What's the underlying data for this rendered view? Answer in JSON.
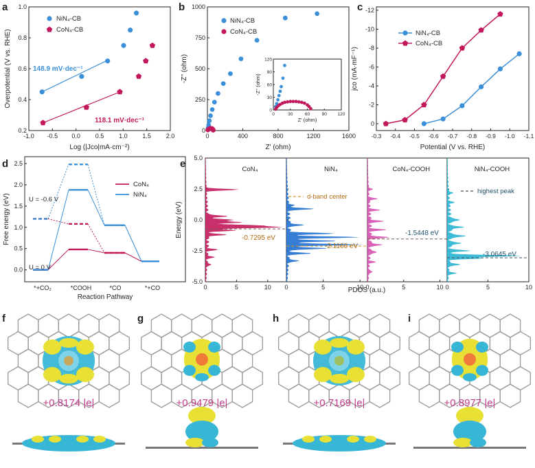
{
  "panel_letters": [
    "a",
    "b",
    "c",
    "d",
    "e",
    "f",
    "g",
    "h",
    "i"
  ],
  "colors": {
    "ni": "#3a8fd8",
    "co": "#c2185b",
    "ni_line": "#3a8fd8",
    "co_line": "#c2185b",
    "orange": "#e0961c",
    "cyan": "#27b3d1",
    "pink": "#d64fb0",
    "blue2": "#1f6fd0"
  },
  "chart_data": [
    {
      "id": "a",
      "type": "scatter",
      "xlabel": "Log (|Jco|mA·cm⁻²)",
      "ylabel": "Overpotential (V vs. RHE)",
      "xlim": [
        -1.0,
        2.0
      ],
      "ylim": [
        0.2,
        1.0
      ],
      "xticks": [
        "-1.0",
        "-0.5",
        "0.0",
        "0.5",
        "1.0",
        "1.5",
        "2.0"
      ],
      "yticks": [
        "0.2",
        "0.4",
        "0.6",
        "0.8",
        "1.0"
      ],
      "legend": [
        "NiN₄-CB",
        "CoN₄-CB"
      ],
      "series": [
        {
          "name": "NiN₄-CB",
          "color": "#3a8fd8",
          "marker": "circle",
          "x": [
            -0.72,
            0.12,
            0.67,
            1.01,
            1.15,
            1.28
          ],
          "y": [
            0.45,
            0.55,
            0.65,
            0.75,
            0.85,
            0.96
          ],
          "fit": {
            "x": [
              -0.72,
              0.67
            ],
            "y": [
              0.45,
              0.655
            ]
          }
        },
        {
          "name": "CoN₄-CB",
          "color": "#c2185b",
          "marker": "pentagon",
          "x": [
            -0.7,
            0.22,
            0.93,
            1.33,
            1.48,
            1.62
          ],
          "y": [
            0.25,
            0.35,
            0.45,
            0.55,
            0.65,
            0.75
          ],
          "fit": {
            "x": [
              -0.7,
              0.93
            ],
            "y": [
              0.25,
              0.45
            ]
          }
        }
      ],
      "annotations": [
        "148.9 mV·dec⁻¹",
        "118.1 mV·dec⁻¹"
      ]
    },
    {
      "id": "b",
      "type": "scatter",
      "xlabel": "Z' (ohm)",
      "ylabel": "-Z'' (ohm)",
      "xlim": [
        0,
        1600
      ],
      "ylim": [
        0,
        1000
      ],
      "xticks": [
        "0",
        "400",
        "800",
        "1200",
        "1600"
      ],
      "yticks": [
        "0",
        "250",
        "500",
        "750",
        "1000"
      ],
      "legend": [
        "NiN₄-CB",
        "CoN₄-CB"
      ],
      "series": [
        {
          "name": "NiN₄-CB",
          "color": "#3a8fd8",
          "x": [
            8,
            14,
            22,
            35,
            55,
            80,
            120,
            180,
            260,
            380,
            560,
            880,
            1240
          ],
          "y": [
            20,
            45,
            80,
            120,
            170,
            230,
            300,
            380,
            460,
            580,
            730,
            910,
            945
          ]
        },
        {
          "name": "CoN₄-CB",
          "color": "#c2185b",
          "x": [
            5,
            10,
            18,
            28,
            38,
            48,
            55,
            60,
            64,
            66
          ],
          "y": [
            5,
            10,
            14,
            17,
            18,
            17,
            15,
            11,
            7,
            3
          ]
        }
      ],
      "inset": {
        "xlabel": "Z' (ohm)",
        "ylabel": "-Z'' (ohm)",
        "xlim": [
          0,
          120
        ],
        "ylim": [
          0,
          120
        ],
        "xticks": [
          "0",
          "30",
          "60",
          "90",
          "120"
        ],
        "yticks": [
          "0",
          "30",
          "60",
          "90",
          "120"
        ],
        "ni": {
          "x": [
            4,
            6,
            8,
            10,
            12,
            14,
            17,
            20
          ],
          "y": [
            8,
            15,
            24,
            34,
            44,
            55,
            75,
            105
          ]
        },
        "co": {
          "x": [
            4,
            6,
            9,
            12,
            16,
            20,
            25,
            30,
            35,
            40,
            45,
            50,
            55,
            60,
            63,
            66
          ],
          "y": [
            2,
            6,
            10,
            13,
            16,
            18,
            19,
            20,
            20,
            20,
            19,
            18,
            16,
            12,
            8,
            3
          ]
        }
      }
    },
    {
      "id": "c",
      "type": "line",
      "xlabel": "Potential (V vs. RHE)",
      "ylabel": "jco (mA·mF⁻¹)",
      "xlim": [
        -0.3,
        -1.1
      ],
      "ylim": [
        0,
        -12
      ],
      "xticks": [
        "-0.3",
        "-0.4",
        "-0.5",
        "-0.6",
        "-0.7",
        "-0.8",
        "-0.9",
        "-1.0",
        "-1.1"
      ],
      "yticks": [
        "0",
        "-2",
        "-4",
        "-6",
        "-8",
        "-10",
        "-12"
      ],
      "legend": [
        "NiN₄-CB",
        "CoN₄-CB"
      ],
      "series": [
        {
          "name": "NiN₄-CB",
          "color": "#3a8fd8",
          "marker": "circle",
          "x": [
            -0.55,
            -0.65,
            -0.75,
            -0.85,
            -0.95,
            -1.05
          ],
          "y": [
            0,
            -0.5,
            -1.9,
            -3.9,
            -5.8,
            -7.4
          ]
        },
        {
          "name": "CoN₄-CB",
          "color": "#c2185b",
          "marker": "pentagon",
          "x": [
            -0.35,
            -0.45,
            -0.55,
            -0.65,
            -0.75,
            -0.85,
            -0.95
          ],
          "y": [
            0,
            -0.4,
            -2.0,
            -5.0,
            -8.0,
            -9.9,
            -11.6
          ]
        }
      ]
    },
    {
      "id": "d",
      "type": "line",
      "xlabel": "Reaction Pathway",
      "ylabel": "Free energy (eV)",
      "ylim": [
        -0.2,
        2.5
      ],
      "yticks": [
        "0.0",
        "0.5",
        "1.0",
        "1.5",
        "2.0",
        "2.5"
      ],
      "categories": [
        "*+CO₂",
        "*COOH",
        "*CO",
        "*+CO"
      ],
      "legend": [
        "CoN₄",
        "NiN₄"
      ],
      "series": [
        {
          "name": "CoN₄",
          "color": "#c2185b",
          "U0": [
            0.0,
            0.48,
            0.4,
            0.2
          ],
          "Uneg": [
            1.2,
            1.08,
            0.4,
            0.2
          ]
        },
        {
          "name": "NiN₄",
          "color": "#3a8fd8",
          "U0": [
            0.0,
            1.88,
            1.05,
            0.2
          ],
          "Uneg": [
            1.2,
            2.48,
            1.05,
            0.2
          ]
        }
      ],
      "annotations": [
        "U = -0.6 V",
        "U = 0 V"
      ]
    },
    {
      "id": "e",
      "type": "area",
      "xlabel": "PDOS (a.u.)",
      "ylabel": "Energy (eV)",
      "ylim": [
        -5.0,
        5.0
      ],
      "yticks": [
        "-5.0",
        "-2.5",
        "0.0",
        "2.5",
        "5.0"
      ],
      "subplots": [
        {
          "title": "CoN₄",
          "color": "#c2185b",
          "xlim": [
            0,
            13
          ],
          "xticks": [
            "0",
            "5",
            "10"
          ],
          "center": -0.7295,
          "center_label": "-0.7295 eV",
          "peaks": [
            {
              "e": 2.45,
              "v": 5.2
            },
            {
              "e": 0.3,
              "v": 3.5
            },
            {
              "e": 0.0,
              "v": 4.5
            },
            {
              "e": -0.2,
              "v": 5.5
            },
            {
              "e": -0.45,
              "v": 8
            },
            {
              "e": -0.6,
              "v": 11.5
            },
            {
              "e": -0.85,
              "v": 4.5
            },
            {
              "e": -1.2,
              "v": 3.0
            },
            {
              "e": -2.4,
              "v": 1.5
            },
            {
              "e": -3.0,
              "v": 1.2
            },
            {
              "e": -3.6,
              "v": 0.8
            }
          ]
        },
        {
          "title": "NiN₄",
          "color": "#1f6fd0",
          "xlim": [
            0,
            11
          ],
          "xticks": [
            "0",
            "5",
            "10"
          ],
          "center": -2.116,
          "center_label": "-2.1160 eV",
          "legend": "d-band center",
          "peaks": [
            {
              "e": 1.2,
              "v": 0.8
            },
            {
              "e": 0.9,
              "v": 3.5
            },
            {
              "e": -0.4,
              "v": 2.0
            },
            {
              "e": -1.1,
              "v": 6.0
            },
            {
              "e": -1.4,
              "v": 9.5
            },
            {
              "e": -1.7,
              "v": 6.5
            },
            {
              "e": -2.0,
              "v": 10.2
            },
            {
              "e": -2.3,
              "v": 5.5
            },
            {
              "e": -2.7,
              "v": 3.0
            },
            {
              "e": -3.3,
              "v": 1.5
            }
          ]
        },
        {
          "title": "CoN₄-COOH",
          "color": "#d64fb0",
          "xlim": [
            0,
            11
          ],
          "xticks": [
            "0",
            "5",
            "10"
          ],
          "center": -1.5448,
          "center_label": "-1.5448 eV",
          "peaks": [
            {
              "e": 2.5,
              "v": 0.6
            },
            {
              "e": 1.7,
              "v": 1.2
            },
            {
              "e": 0.8,
              "v": 1.3
            },
            {
              "e": -0.1,
              "v": 1.8
            },
            {
              "e": -0.8,
              "v": 2.0
            },
            {
              "e": -1.4,
              "v": 2.5
            },
            {
              "e": -2.0,
              "v": 1.8
            },
            {
              "e": -2.6,
              "v": 1.2
            },
            {
              "e": -3.4,
              "v": 0.8
            },
            {
              "e": -4.2,
              "v": 0.6
            }
          ]
        },
        {
          "title": "NiN₄-COOH",
          "color": "#27b3d1",
          "xlim": [
            0,
            10
          ],
          "xticks": [
            "0",
            "5",
            "10"
          ],
          "center": -3.0645,
          "center_label": "-3.0645 eV",
          "legend": "highest peak",
          "peaks": [
            {
              "e": 2.2,
              "v": 0.6
            },
            {
              "e": 1.4,
              "v": 0.6
            },
            {
              "e": 0.0,
              "v": 1.5
            },
            {
              "e": -0.6,
              "v": 1.8
            },
            {
              "e": -1.3,
              "v": 2.2
            },
            {
              "e": -1.9,
              "v": 1.5
            },
            {
              "e": -2.5,
              "v": 2.5
            },
            {
              "e": -2.9,
              "v": 9.0
            },
            {
              "e": -3.1,
              "v": 4.0
            },
            {
              "e": -3.6,
              "v": 1.5
            },
            {
              "e": -4.3,
              "v": 1.0
            }
          ]
        }
      ]
    }
  ],
  "charges": [
    {
      "panel": "f",
      "label": "+0.8174 |e|"
    },
    {
      "panel": "g",
      "label": "+0.9479 |e|"
    },
    {
      "panel": "h",
      "label": "+0.7169 |e|"
    },
    {
      "panel": "i",
      "label": "+0.8977 |e|"
    }
  ]
}
